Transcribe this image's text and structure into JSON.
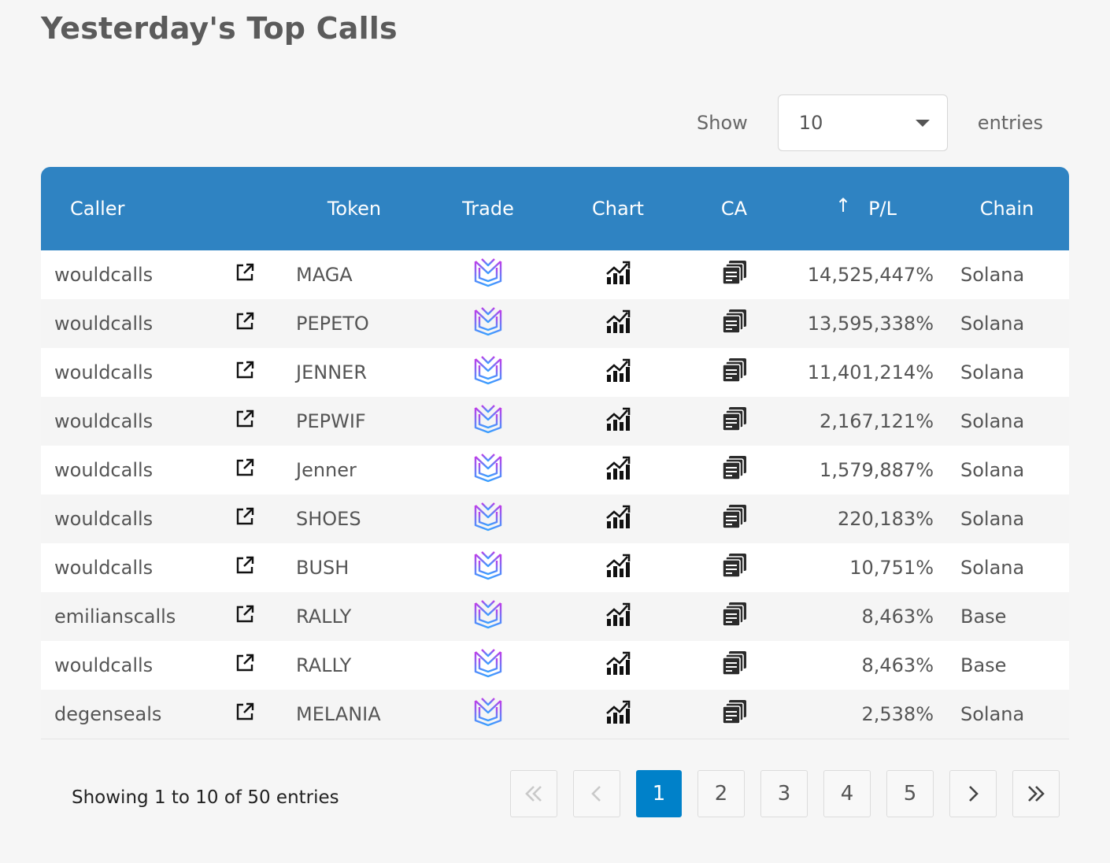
{
  "title": "Yesterday's Top Calls",
  "length_menu": {
    "show_label": "Show",
    "selected": "10",
    "entries_label": "entries"
  },
  "columns": {
    "caller": "Caller",
    "ext": "",
    "token": "Token",
    "trade": "Trade",
    "chart": "Chart",
    "ca": "CA",
    "pl": "P/L",
    "pl_sort": "↑",
    "chain": "Chain"
  },
  "rows": [
    {
      "caller": "wouldcalls",
      "token": "MAGA",
      "pl": "14,525,447%",
      "chain": "Solana"
    },
    {
      "caller": "wouldcalls",
      "token": "PEPETO",
      "pl": "13,595,338%",
      "chain": "Solana"
    },
    {
      "caller": "wouldcalls",
      "token": "JENNER",
      "pl": "11,401,214%",
      "chain": "Solana"
    },
    {
      "caller": "wouldcalls",
      "token": "PEPWIF",
      "pl": "2,167,121%",
      "chain": "Solana"
    },
    {
      "caller": "wouldcalls",
      "token": "Jenner",
      "pl": "1,579,887%",
      "chain": "Solana"
    },
    {
      "caller": "wouldcalls",
      "token": "SHOES",
      "pl": "220,183%",
      "chain": "Solana"
    },
    {
      "caller": "wouldcalls",
      "token": "BUSH",
      "pl": "10,751%",
      "chain": "Solana"
    },
    {
      "caller": "emilianscalls",
      "token": "RALLY",
      "pl": "8,463%",
      "chain": "Base"
    },
    {
      "caller": "wouldcalls",
      "token": "RALLY",
      "pl": "8,463%",
      "chain": "Base"
    },
    {
      "caller": "degenseals",
      "token": "MELANIA",
      "pl": "2,538%",
      "chain": "Solana"
    }
  ],
  "info": "Showing 1 to 10 of 50 entries",
  "pagination": {
    "first": "«",
    "prev": "‹",
    "pages": [
      "1",
      "2",
      "3",
      "4",
      "5"
    ],
    "current": "1",
    "next": "›",
    "last": "»"
  },
  "icons": {
    "external": "external-link-icon",
    "trade": "trade-logo-icon",
    "chart": "chart-icon",
    "ca": "copy-icon"
  },
  "colors": {
    "header": "#2f83c2",
    "active_page": "#0081c9"
  }
}
